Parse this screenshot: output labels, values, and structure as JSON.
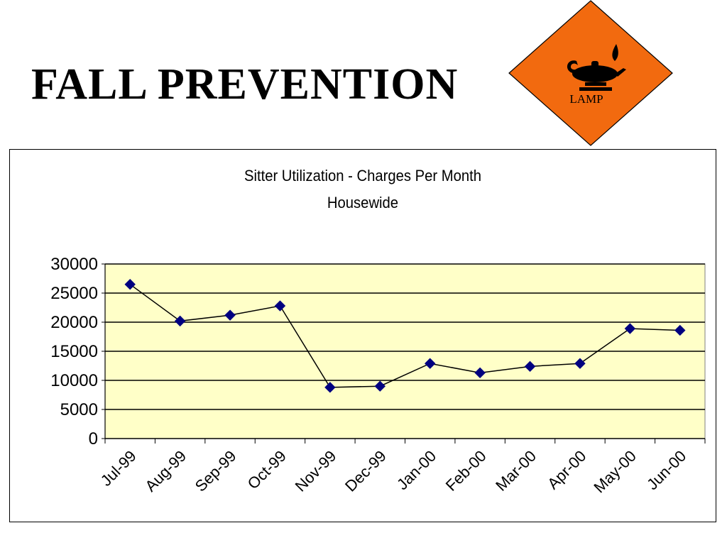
{
  "slide": {
    "title": "FALL PREVENTION",
    "logo_text": "LAMP",
    "logo_color": "#F26A0F"
  },
  "chart_data": {
    "type": "line",
    "title": "Sitter Utilization - Charges Per Month",
    "subtitle": "Housewide",
    "xlabel": "",
    "ylabel": "",
    "categories": [
      "Jul-99",
      "Aug-99",
      "Sep-99",
      "Oct-99",
      "Nov-99",
      "Dec-99",
      "Jan-00",
      "Feb-00",
      "Mar-00",
      "Apr-00",
      "May-00",
      "Jun-00"
    ],
    "series": [
      {
        "values": [
          26500,
          20200,
          21200,
          22800,
          8800,
          9000,
          12900,
          11300,
          12400,
          12900,
          18900,
          18600
        ],
        "color": "#000080"
      }
    ],
    "ylim": [
      0,
      30000
    ],
    "yticks": [
      0,
      5000,
      10000,
      15000,
      20000,
      25000,
      30000
    ],
    "grid": true,
    "plot_background": "#FFFFC8",
    "line_color": "#000000",
    "legend": "none"
  }
}
